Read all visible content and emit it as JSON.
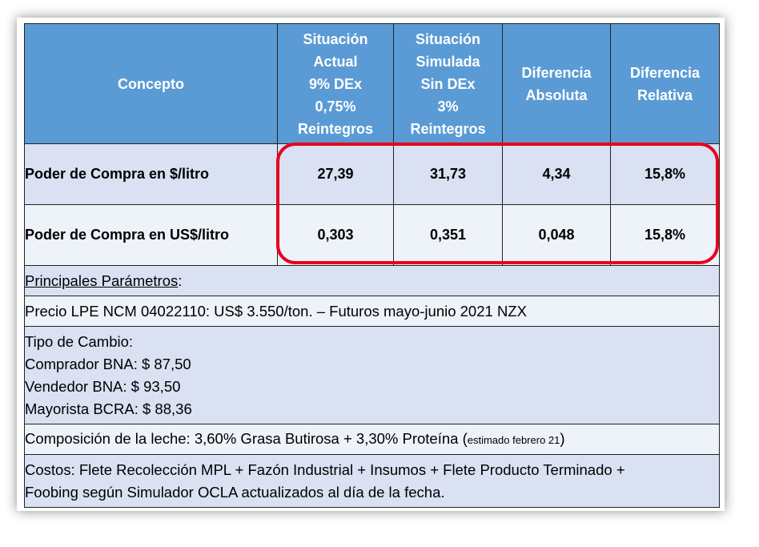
{
  "table": {
    "headers": {
      "concepto": "Concepto",
      "actual": [
        "Situación",
        "Actual",
        "9% DEx",
        "0,75%",
        "Reintegros"
      ],
      "simulada": [
        "Situación",
        "Simulada",
        "Sin DEx",
        "3%",
        "Reintegros"
      ],
      "diferencia_absoluta": [
        "Diferencia",
        "Absoluta"
      ],
      "diferencia_relativa": [
        "Diferencia",
        "Relativa"
      ]
    },
    "rows": [
      {
        "label": "Poder de Compra en $/litro",
        "actual": "27,39",
        "simulada": "31,73",
        "diferencia_absoluta": "4,34",
        "diferencia_relativa": "15,8%"
      },
      {
        "label": "Poder de Compra en US$/litro",
        "actual": "0,303",
        "simulada": "0,351",
        "diferencia_absoluta": "0,048",
        "diferencia_relativa": "15,8%"
      }
    ]
  },
  "parametros": {
    "title": "Principales Parámetros",
    "title_suffix": ":",
    "precio": "Precio LPE NCM 04022110: US$ 3.550/ton. – Futuros mayo-junio 2021 NZX",
    "tipo_cambio": {
      "title": "Tipo de Cambio:",
      "comprador": "Comprador BNA: $ 87,50",
      "vendedor": "Vendedor BNA: $ 93,50",
      "mayorista": "Mayorista BCRA: $ 88,36"
    },
    "composicion": {
      "text": "Composición de la leche: 3,60% Grasa Butirosa + 3,30% Proteína ",
      "note_open": "(",
      "note": "estimado febrero 21",
      "note_close": ")"
    },
    "costos": {
      "line1": "Costos: Flete Recolección MPL + Fazón Industrial + Insumos + Flete Producto Terminado +",
      "line2": "Foobing según Simulador OCLA actualizados al día de la fecha."
    }
  },
  "colors": {
    "header_bg": "#5b9bd5",
    "row_bg": "#d9e1f2",
    "row_alt_bg": "#eef2f9",
    "highlight": "#e8001c"
  }
}
